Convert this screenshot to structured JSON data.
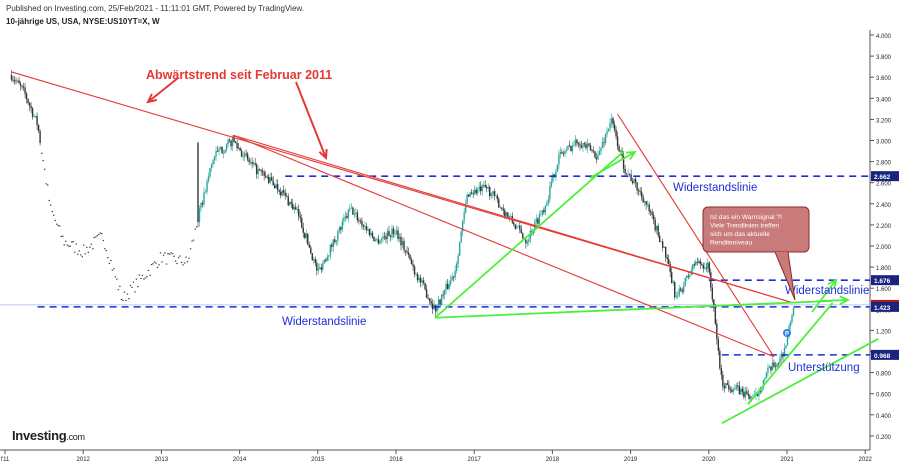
{
  "header": {
    "published": "Published on Investing.com, 25/Feb/2021 - 11:11:01 GMT, Powered by TradingView.",
    "instrument": "10-jährige US, USA, NYSE:US10YT=X, W"
  },
  "logo": {
    "main": "Investing",
    "suffix": ".com"
  },
  "chart_data": {
    "type": "candlestick",
    "title": "",
    "xlabel": "",
    "ylabel": "",
    "ylim": [
      0.2,
      4.0
    ],
    "x_ticks": [
      "l'11",
      "2012",
      "2013",
      "2014",
      "2015",
      "2016",
      "2017",
      "2018",
      "2019",
      "2020",
      "2021",
      "2022"
    ],
    "y_ticks": [
      "4.000",
      "3.800",
      "3.600",
      "3.400",
      "3.200",
      "3.000",
      "2.800",
      "2.600",
      "2.400",
      "2.200",
      "2.000",
      "1.800",
      "1.600",
      "1.400",
      "1.200",
      "1.000",
      "0.800",
      "0.600",
      "0.400",
      "0.200"
    ],
    "price_path": [
      {
        "date": "2011-02",
        "value": 3.62
      },
      {
        "date": "2011-04",
        "value": 3.45
      },
      {
        "date": "2011-06",
        "value": 3.15
      },
      {
        "date": "2011-08",
        "value": 2.35
      },
      {
        "date": "2011-10",
        "value": 2.05
      },
      {
        "date": "2012-01",
        "value": 1.95
      },
      {
        "date": "2012-04",
        "value": 2.1
      },
      {
        "date": "2012-07",
        "value": 1.5
      },
      {
        "date": "2012-10",
        "value": 1.7
      },
      {
        "date": "2013-01",
        "value": 1.9
      },
      {
        "date": "2013-05",
        "value": 1.85
      },
      {
        "date": "2013-09",
        "value": 2.85
      },
      {
        "date": "2013-12",
        "value": 3.0
      },
      {
        "date": "2014-03",
        "value": 2.75
      },
      {
        "date": "2014-07",
        "value": 2.55
      },
      {
        "date": "2014-10",
        "value": 2.3
      },
      {
        "date": "2015-01",
        "value": 1.75
      },
      {
        "date": "2015-06",
        "value": 2.35
      },
      {
        "date": "2015-10",
        "value": 2.05
      },
      {
        "date": "2016-01",
        "value": 2.15
      },
      {
        "date": "2016-04",
        "value": 1.75
      },
      {
        "date": "2016-07",
        "value": 1.4
      },
      {
        "date": "2016-10",
        "value": 1.75
      },
      {
        "date": "2016-12",
        "value": 2.5
      },
      {
        "date": "2017-03",
        "value": 2.55
      },
      {
        "date": "2017-09",
        "value": 2.05
      },
      {
        "date": "2017-12",
        "value": 2.4
      },
      {
        "date": "2018-02",
        "value": 2.85
      },
      {
        "date": "2018-05",
        "value": 3.0
      },
      {
        "date": "2018-08",
        "value": 2.85
      },
      {
        "date": "2018-10",
        "value": 3.2
      },
      {
        "date": "2018-12",
        "value": 2.75
      },
      {
        "date": "2019-03",
        "value": 2.45
      },
      {
        "date": "2019-06",
        "value": 2.0
      },
      {
        "date": "2019-08",
        "value": 1.5
      },
      {
        "date": "2019-11",
        "value": 1.85
      },
      {
        "date": "2020-01",
        "value": 1.8
      },
      {
        "date": "2020-03",
        "value": 0.7
      },
      {
        "date": "2020-05",
        "value": 0.65
      },
      {
        "date": "2020-08",
        "value": 0.55
      },
      {
        "date": "2020-10",
        "value": 0.8
      },
      {
        "date": "2020-12",
        "value": 0.93
      },
      {
        "date": "2021-01",
        "value": 1.1
      },
      {
        "date": "2021-02",
        "value": 1.44
      }
    ],
    "price_labels": [
      {
        "label": "2.662",
        "value": 2.662,
        "color": "#1a237e"
      },
      {
        "label": "1.676",
        "value": 1.676,
        "color": "#1a237e"
      },
      {
        "label": "1.442",
        "value": 1.442,
        "color": "#b71c1c"
      },
      {
        "label": "1.423",
        "value": 1.423,
        "color": "#1a237e"
      },
      {
        "label": "0.968",
        "value": 0.968,
        "color": "#1a237e"
      }
    ],
    "horizontal_levels": [
      {
        "value": 2.662,
        "from": "2014-08",
        "name": "Widerstandslinie"
      },
      {
        "value": 1.676,
        "from": "2020-01",
        "name": ""
      },
      {
        "value": 1.423,
        "from": "2011-06",
        "name": "Widerstandslinie"
      },
      {
        "value": 0.968,
        "from": "2020-03",
        "name": ""
      }
    ],
    "trendlines": [
      {
        "color": "red",
        "from": {
          "date": "2011-02",
          "value": 3.65
        },
        "to": {
          "date": "2021-02",
          "value": 1.46
        }
      },
      {
        "color": "red",
        "from": {
          "date": "2013-12",
          "value": 3.05
        },
        "to": {
          "date": "2021-02",
          "value": 1.46
        }
      },
      {
        "color": "red",
        "from": {
          "date": "2013-12",
          "value": 3.05
        },
        "to": {
          "date": "2020-11",
          "value": 0.95
        }
      },
      {
        "color": "red",
        "from": {
          "date": "2018-11",
          "value": 3.25
        },
        "to": {
          "date": "2020-11",
          "value": 0.95
        }
      },
      {
        "color": "green",
        "from": {
          "date": "2016-07",
          "value": 1.32
        },
        "to": {
          "date": "2018-12",
          "value": 2.9
        }
      },
      {
        "color": "green",
        "from": {
          "date": "2016-07",
          "value": 1.32
        },
        "to": {
          "date": "2021-08",
          "value": 1.48
        }
      },
      {
        "color": "green",
        "from": {
          "date": "2020-03",
          "value": 0.32
        },
        "to": {
          "date": "2022-03",
          "value": 1.12
        }
      },
      {
        "color": "green",
        "from": {
          "date": "2020-07",
          "value": 0.5
        },
        "to": {
          "date": "2021-08",
          "value": 1.46
        }
      }
    ],
    "annotations": {
      "title": "Abwärtstrend seit Februar 2011",
      "resistance_upper": "Widerstandslinie",
      "resistance_lower": "Widerstandslinie",
      "resistance_right": "Widerstandslinie",
      "support": "Unterstützung",
      "callout": [
        "Ist das ein Warnsignal ?!",
        "Viele Trendlinien treffen",
        "sich um das aktuelle",
        "Renditeniveau"
      ],
      "marker": "P"
    },
    "colors": {
      "up": "#26a69a",
      "down": "#333333",
      "trend_red": "#e53935",
      "trend_green": "#4cef3a",
      "level": "#1f2fd6",
      "callout_fill": "#c97b7b",
      "callout_stroke": "#8a2c2c"
    },
    "grid": false
  }
}
